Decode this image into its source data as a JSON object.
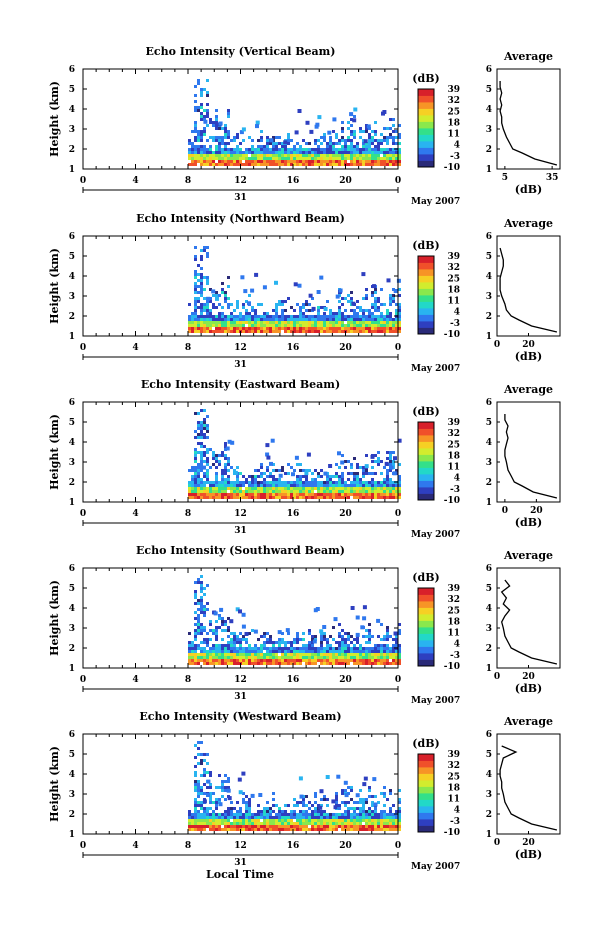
{
  "figure": {
    "footer_xlabel": "Local Time",
    "month_label": "May 2007",
    "avg_title": "Average",
    "avg_xlabel": "(dB)",
    "cb_title": "(dB)"
  },
  "colorbar": {
    "ticks": [
      "39",
      "32",
      "25",
      "18",
      "11",
      "4",
      "-3",
      "-10"
    ],
    "colors": [
      "#2a2a78",
      "#2e3fc0",
      "#2f78ee",
      "#29b4f0",
      "#22d8c8",
      "#33e08a",
      "#8ae84c",
      "#d2ec2e",
      "#f6d024",
      "#f79426",
      "#f0502a",
      "#d8202a"
    ]
  },
  "chart_data": [
    {
      "type": "heatmap",
      "title": "Echo Intensity (Vertical Beam)",
      "ylabel": "Height (km)",
      "xlim": [
        0,
        24
      ],
      "ylim": [
        1,
        6
      ],
      "xticks": [
        "0",
        "4",
        "8",
        "12",
        "16",
        "20",
        "0"
      ],
      "yticks": [
        "1",
        "2",
        "3",
        "4",
        "5",
        "6"
      ],
      "date_label": "31",
      "profile": {
        "xticks": [
          "5",
          "35"
        ],
        "xlim": [
          0,
          40
        ],
        "heights": [
          1.2,
          1.5,
          1.8,
          2.0,
          2.3,
          2.6,
          3.0,
          3.3,
          3.6,
          3.9,
          4.2,
          4.5,
          4.8,
          5.1,
          5.4
        ],
        "values": [
          38,
          24,
          16,
          10,
          8,
          6,
          4,
          3,
          3,
          2,
          3,
          2,
          3,
          2,
          2
        ]
      }
    },
    {
      "type": "heatmap",
      "title": "Echo Intensity (Northward Beam)",
      "ylabel": "Height (km)",
      "xlim": [
        0,
        24
      ],
      "ylim": [
        1,
        6
      ],
      "xticks": [
        "0",
        "4",
        "8",
        "12",
        "16",
        "20",
        "0"
      ],
      "yticks": [
        "1",
        "2",
        "3",
        "4",
        "5",
        "6"
      ],
      "date_label": "31",
      "profile": {
        "xticks": [
          "0",
          "20"
        ],
        "xlim": [
          0,
          40
        ],
        "heights": [
          1.2,
          1.5,
          1.8,
          2.0,
          2.3,
          2.6,
          3.0,
          3.3,
          3.6,
          3.9,
          4.2,
          4.5,
          4.8,
          5.1,
          5.4
        ],
        "values": [
          38,
          22,
          14,
          9,
          6,
          5,
          3,
          2,
          2,
          2,
          3,
          4,
          4,
          3,
          2
        ]
      }
    },
    {
      "type": "heatmap",
      "title": "Echo Intensity (Eastward Beam)",
      "ylabel": "Height (km)",
      "xlim": [
        0,
        24
      ],
      "ylim": [
        1,
        6
      ],
      "xticks": [
        "0",
        "4",
        "8",
        "12",
        "16",
        "20",
        "0"
      ],
      "yticks": [
        "1",
        "2",
        "3",
        "4",
        "5",
        "6"
      ],
      "date_label": "31",
      "profile": {
        "xticks": [
          "0",
          "20"
        ],
        "xlim": [
          -5,
          35
        ],
        "heights": [
          1.2,
          1.5,
          1.8,
          2.0,
          2.3,
          2.6,
          3.0,
          3.3,
          3.6,
          3.9,
          4.2,
          4.5,
          4.8,
          5.1,
          5.4
        ],
        "values": [
          33,
          18,
          11,
          6,
          4,
          2,
          1,
          0,
          0,
          1,
          2,
          1,
          2,
          0,
          0
        ]
      }
    },
    {
      "type": "heatmap",
      "title": "Echo Intensity (Southward Beam)",
      "ylabel": "Height (km)",
      "xlim": [
        0,
        24
      ],
      "ylim": [
        1,
        6
      ],
      "xticks": [
        "0",
        "4",
        "8",
        "12",
        "16",
        "20",
        "0"
      ],
      "yticks": [
        "1",
        "2",
        "3",
        "4",
        "5",
        "6"
      ],
      "date_label": "31",
      "profile": {
        "xticks": [
          "0",
          "20"
        ],
        "xlim": [
          0,
          40
        ],
        "heights": [
          1.2,
          1.5,
          1.8,
          2.0,
          2.3,
          2.6,
          3.0,
          3.3,
          3.6,
          3.9,
          4.2,
          4.5,
          4.8,
          5.1,
          5.4
        ],
        "values": [
          38,
          22,
          14,
          9,
          7,
          5,
          4,
          3,
          5,
          8,
          4,
          6,
          3,
          8,
          5
        ]
      }
    },
    {
      "type": "heatmap",
      "title": "Echo Intensity (Westward Beam)",
      "ylabel": "Height (km)",
      "xlim": [
        0,
        24
      ],
      "ylim": [
        1,
        6
      ],
      "xticks": [
        "0",
        "4",
        "8",
        "12",
        "16",
        "20",
        "0"
      ],
      "yticks": [
        "1",
        "2",
        "3",
        "4",
        "5",
        "6"
      ],
      "date_label": "31",
      "profile": {
        "xticks": [
          "0",
          "20"
        ],
        "xlim": [
          0,
          40
        ],
        "heights": [
          1.2,
          1.5,
          1.8,
          2.0,
          2.3,
          2.6,
          3.0,
          3.3,
          3.6,
          3.9,
          4.2,
          4.5,
          4.8,
          5.1,
          5.4
        ],
        "values": [
          38,
          22,
          14,
          9,
          7,
          5,
          4,
          3,
          3,
          2,
          2,
          3,
          4,
          12,
          3
        ]
      }
    }
  ]
}
